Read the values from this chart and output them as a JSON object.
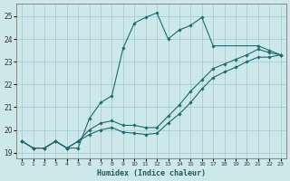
{
  "xlabel": "Humidex (Indice chaleur)",
  "xlim": [
    -0.5,
    23.5
  ],
  "ylim": [
    18.75,
    25.55
  ],
  "xticks": [
    0,
    1,
    2,
    3,
    4,
    5,
    6,
    7,
    8,
    9,
    10,
    11,
    12,
    13,
    14,
    15,
    16,
    17,
    18,
    19,
    20,
    21,
    22,
    23
  ],
  "yticks": [
    19,
    20,
    21,
    22,
    23,
    24,
    25
  ],
  "bg_color": "#cde8eb",
  "grid_color": "#aacdd2",
  "line_color": "#1b6b6b",
  "lines": [
    {
      "x": [
        0,
        1,
        2,
        3,
        4,
        5,
        6,
        7,
        8,
        9,
        10,
        11,
        12,
        13,
        14,
        15,
        16,
        17,
        21,
        22,
        23
      ],
      "y": [
        19.5,
        19.2,
        19.2,
        19.5,
        19.2,
        19.2,
        20.5,
        21.2,
        21.5,
        23.6,
        24.7,
        24.95,
        25.15,
        24.0,
        24.4,
        24.6,
        24.95,
        23.7,
        23.7,
        23.5,
        23.3
      ]
    },
    {
      "x": [
        0,
        1,
        2,
        3,
        4,
        5,
        6,
        7,
        8,
        9,
        10,
        11,
        12,
        13,
        14,
        15,
        16,
        17,
        18,
        19,
        20,
        21,
        22,
        23
      ],
      "y": [
        19.5,
        19.2,
        19.2,
        19.5,
        19.2,
        19.5,
        20.0,
        20.3,
        20.4,
        20.2,
        20.2,
        20.1,
        20.1,
        20.6,
        21.1,
        21.7,
        22.2,
        22.7,
        22.9,
        23.1,
        23.3,
        23.55,
        23.4,
        23.3
      ]
    },
    {
      "x": [
        0,
        1,
        2,
        3,
        4,
        5,
        6,
        7,
        8,
        9,
        10,
        11,
        12,
        13,
        14,
        15,
        16,
        17,
        18,
        19,
        20,
        21,
        22,
        23
      ],
      "y": [
        19.5,
        19.2,
        19.2,
        19.5,
        19.2,
        19.5,
        19.8,
        20.0,
        20.1,
        19.9,
        19.85,
        19.8,
        19.85,
        20.3,
        20.7,
        21.2,
        21.8,
        22.3,
        22.55,
        22.75,
        23.0,
        23.2,
        23.2,
        23.3
      ]
    }
  ]
}
